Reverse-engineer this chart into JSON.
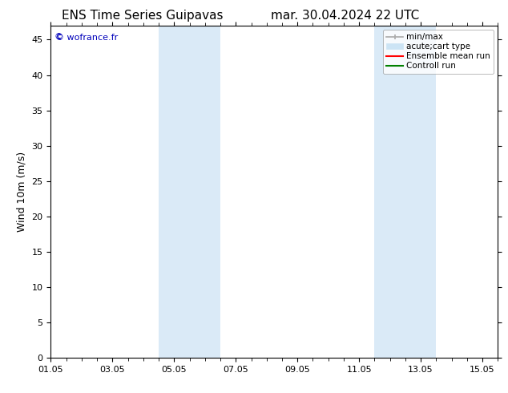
{
  "title_left": "ENS Time Series Guipavas",
  "title_right": "mar. 30.04.2024 22 UTC",
  "ylabel": "Wind 10m (m/s)",
  "ylim": [
    0,
    47
  ],
  "yticks": [
    0,
    5,
    10,
    15,
    20,
    25,
    30,
    35,
    40,
    45
  ],
  "xlim_start": 0,
  "xlim_end": 14.5,
  "xtick_labels": [
    "01.05",
    "03.05",
    "05.05",
    "07.05",
    "09.05",
    "11.05",
    "13.05",
    "15.05"
  ],
  "xtick_positions": [
    0,
    2,
    4,
    6,
    8,
    10,
    12,
    14
  ],
  "shaded_bands": [
    {
      "x_start": 3.5,
      "x_end": 5.5,
      "color": "#daeaf7"
    },
    {
      "x_start": 10.5,
      "x_end": 12.5,
      "color": "#daeaf7"
    }
  ],
  "legend_entries": [
    {
      "label": "min/max",
      "color": "#aaaaaa"
    },
    {
      "label": "acute;cart type",
      "color": "#cce4f5"
    },
    {
      "label": "Ensemble mean run",
      "color": "#ff0000"
    },
    {
      "label": "Controll run",
      "color": "#008000"
    }
  ],
  "watermark_text": "© wofrance.fr",
  "watermark_color": "#0000bb",
  "bg_color": "#ffffff",
  "title_fontsize": 11,
  "label_fontsize": 9,
  "tick_fontsize": 8,
  "legend_fontsize": 7.5
}
